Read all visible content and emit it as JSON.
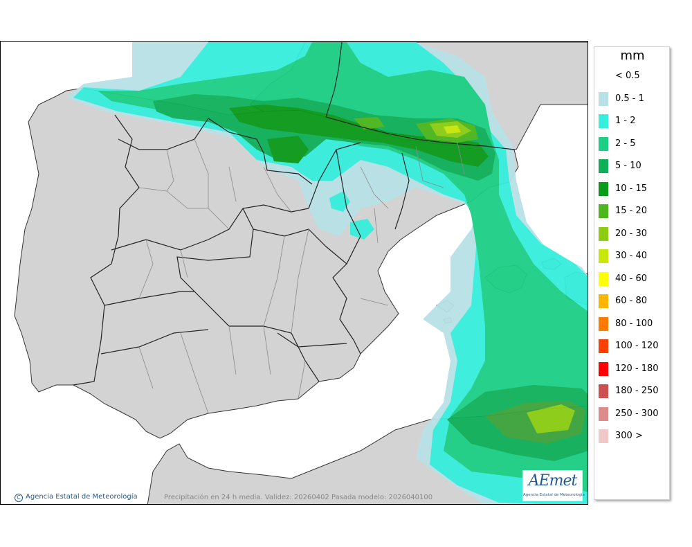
{
  "legend": {
    "title": "mm",
    "entries": [
      {
        "label": "< 0.5",
        "color": "#ffffff"
      },
      {
        "label": "0.5 - 1",
        "color": "#b8e1e6"
      },
      {
        "label": "1 - 2",
        "color": "#35eedc"
      },
      {
        "label": "2 - 5",
        "color": "#1ccf85"
      },
      {
        "label": "5 - 10",
        "color": "#0fb05a"
      },
      {
        "label": "10 - 15",
        "color": "#0a9a1a"
      },
      {
        "label": "15 - 20",
        "color": "#4cb61c"
      },
      {
        "label": "20 - 30",
        "color": "#8ccd14"
      },
      {
        "label": "30 - 40",
        "color": "#c8e60a"
      },
      {
        "label": "40 - 60",
        "color": "#ffff00"
      },
      {
        "label": "60 - 80",
        "color": "#ffb400"
      },
      {
        "label": "80 - 100",
        "color": "#ff7a00"
      },
      {
        "label": "100 - 120",
        "color": "#ff4000"
      },
      {
        "label": "120 - 180",
        "color": "#ff0000"
      },
      {
        "label": "180 - 250",
        "color": "#cc5050"
      },
      {
        "label": "250 - 300",
        "color": "#dc8c8c"
      },
      {
        "label": "300 >",
        "color": "#f0c8c8"
      }
    ]
  },
  "credit": {
    "symbol": "C",
    "text": "Agencia Estatal de Meteorología"
  },
  "caption": "Precipitación en 24 h media. Validez: 20260402 Pasada modelo: 2026040100",
  "logo": {
    "name": "AEmet",
    "subtitle": "Agencia Estatal de Meteorología"
  },
  "colors": {
    "land": "#d3d3d3",
    "sea": "#ffffff",
    "border": "#222222",
    "light_border": "#8a8a8a",
    "brand": "#1f5b8f"
  }
}
